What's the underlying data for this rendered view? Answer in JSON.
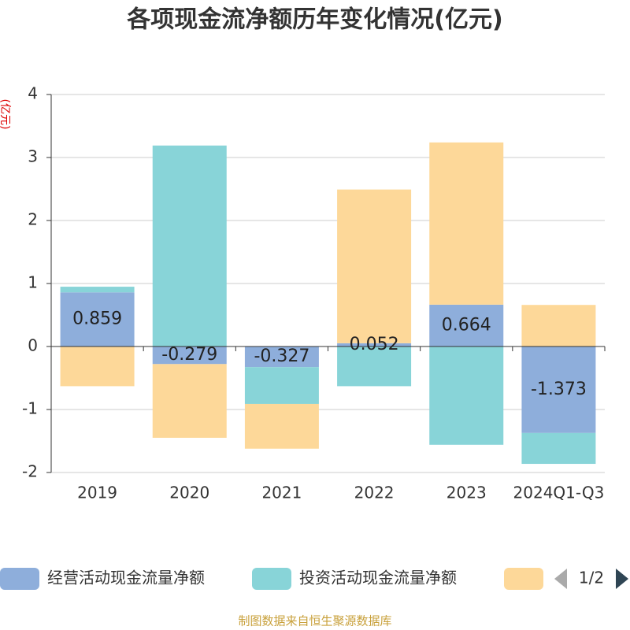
{
  "chart_data": {
    "type": "bar",
    "stacked": true,
    "title": "各项现金流净额历年变化情况(亿元)",
    "y_label": "(亿元)",
    "categories": [
      "2019",
      "2020",
      "2021",
      "2022",
      "2023",
      "2024Q1-Q3"
    ],
    "series": [
      {
        "name": "经营活动现金流量净额",
        "color": "#8eaedb",
        "values": [
          0.859,
          -0.279,
          -0.327,
          0.052,
          0.664,
          -1.373
        ],
        "labels": true
      },
      {
        "name": "投资活动现金流量净额",
        "color": "#88d4d8",
        "values": [
          0.09,
          3.19,
          -0.585,
          -0.63,
          -1.56,
          -0.49
        ]
      },
      {
        "color": "#fdd899",
        "values": [
          -0.63,
          -1.17,
          -0.71,
          2.44,
          2.575,
          0.66
        ]
      }
    ],
    "ylim": [
      -2,
      4
    ],
    "yticks": [
      -2,
      -1,
      0,
      1,
      2,
      3,
      4
    ],
    "grid": true,
    "legend_page": "1/2",
    "source": "制图数据来自恒生聚源数据库"
  }
}
